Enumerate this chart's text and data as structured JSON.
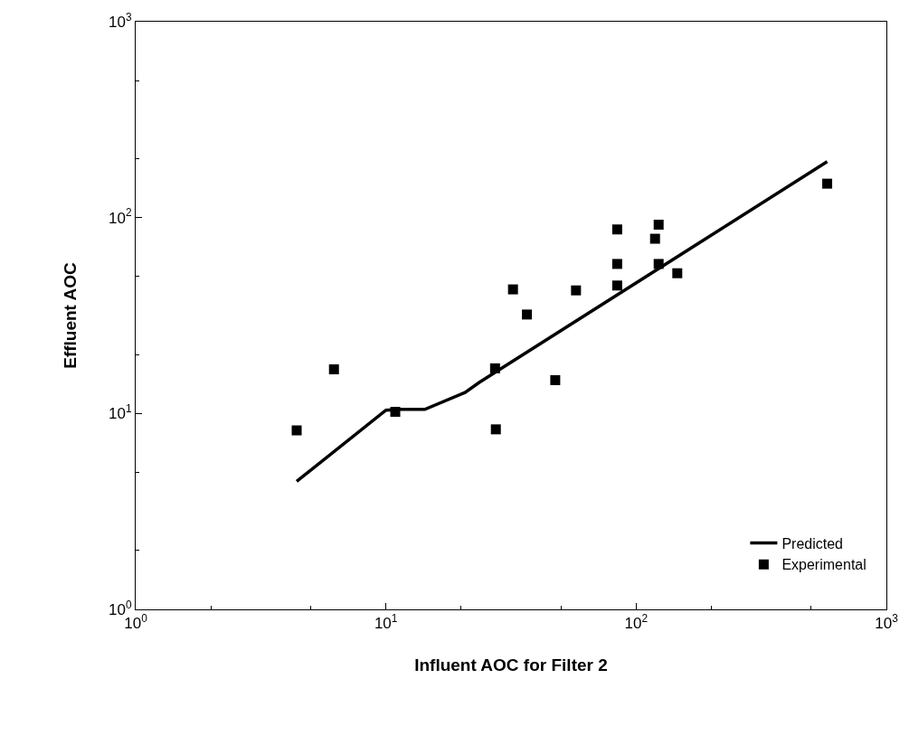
{
  "chart_data": {
    "type": "scatter",
    "xlabel": "Influent AOC for Filter 2",
    "ylabel": "Effluent AOC",
    "log": "xy",
    "xlim": [
      1,
      1000
    ],
    "ylim": [
      1,
      1000
    ],
    "xticks": [
      {
        "value": 1,
        "label": "10$^{0}$"
      },
      {
        "value": 10,
        "label": "10$^{1}$"
      },
      {
        "value": 100,
        "label": "10$^{2}$"
      },
      {
        "value": 1000,
        "label": "10$^{3}$"
      }
    ],
    "yticks": [
      {
        "value": 1,
        "label": "10$^{0}$"
      },
      {
        "value": 10,
        "label": "10$^{1}$"
      },
      {
        "value": 100,
        "label": "10$^{2}$"
      },
      {
        "value": 1000,
        "label": "10$^{3}$"
      }
    ],
    "legend": "bottom right",
    "series": [
      {
        "name": "Predicted",
        "type": "line",
        "color": "#000000",
        "marker": "none",
        "line_style": "solid",
        "x": [
          4.4,
          10,
          11.3,
          14.3,
          20.7,
          23.6,
          580
        ],
        "values": [
          4.5,
          10.4,
          10.5,
          10.5,
          12.8,
          14.4,
          193
        ]
      },
      {
        "name": "Experimental",
        "color": "#000000",
        "marker": "square",
        "x": [
          4.4,
          6.2,
          10.9,
          27.3,
          27.5,
          32.2,
          36.6,
          47.5,
          57.5,
          84,
          84,
          84,
          119,
          123,
          123,
          146,
          580
        ],
        "values": [
          8.2,
          16.8,
          10.2,
          17,
          8.3,
          43,
          32,
          14.8,
          42.5,
          87,
          58,
          45,
          78,
          92,
          58,
          52,
          149
        ]
      }
    ]
  }
}
